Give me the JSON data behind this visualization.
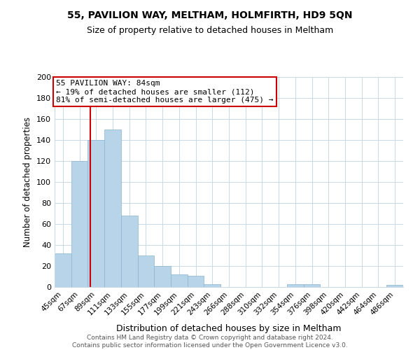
{
  "title": "55, PAVILION WAY, MELTHAM, HOLMFIRTH, HD9 5QN",
  "subtitle": "Size of property relative to detached houses in Meltham",
  "xlabel": "Distribution of detached houses by size in Meltham",
  "ylabel": "Number of detached properties",
  "bar_labels": [
    "45sqm",
    "67sqm",
    "89sqm",
    "111sqm",
    "133sqm",
    "155sqm",
    "177sqm",
    "199sqm",
    "221sqm",
    "243sqm",
    "266sqm",
    "288sqm",
    "310sqm",
    "332sqm",
    "354sqm",
    "376sqm",
    "398sqm",
    "420sqm",
    "442sqm",
    "464sqm",
    "486sqm"
  ],
  "bar_heights": [
    32,
    120,
    140,
    150,
    68,
    30,
    20,
    12,
    11,
    3,
    0,
    0,
    0,
    0,
    3,
    3,
    0,
    0,
    0,
    0,
    2
  ],
  "bar_color": "#b8d4e8",
  "bar_edge_color": "#8ab4d0",
  "vline_x": 1.67,
  "vline_color": "#cc0000",
  "ylim": [
    0,
    200
  ],
  "yticks": [
    0,
    20,
    40,
    60,
    80,
    100,
    120,
    140,
    160,
    180,
    200
  ],
  "annotation_title": "55 PAVILION WAY: 84sqm",
  "annotation_line1": "← 19% of detached houses are smaller (112)",
  "annotation_line2": "81% of semi-detached houses are larger (475) →",
  "annotation_box_color": "#ffffff",
  "annotation_box_edge": "#cc0000",
  "footer_line1": "Contains HM Land Registry data © Crown copyright and database right 2024.",
  "footer_line2": "Contains public sector information licensed under the Open Government Licence v3.0.",
  "background_color": "#ffffff",
  "grid_color": "#c8d8e8"
}
